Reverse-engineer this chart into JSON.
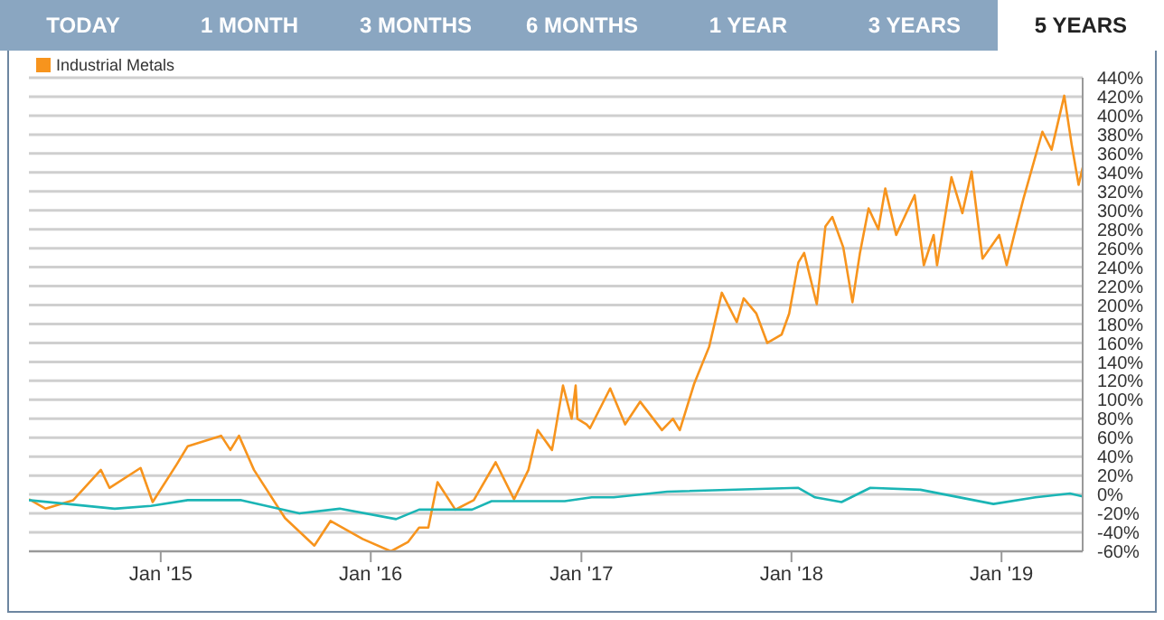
{
  "chart_data": {
    "type": "line",
    "annotations": [
      "TODAY",
      "1 MONTH",
      "3 MONTHS",
      "6 MONTHS",
      "1 YEAR",
      "3 YEARS",
      "5 YEARS"
    ],
    "xlim": [
      "2014-05-17",
      "2019-05-22"
    ],
    "xticks": [
      {
        "value": "2015-01-01",
        "label": "Jan '15"
      },
      {
        "value": "2016-01-01",
        "label": "Jan '16"
      },
      {
        "value": "2017-01-01",
        "label": "Jan '17"
      },
      {
        "value": "2018-01-01",
        "label": "Jan '18"
      },
      {
        "value": "2019-01-01",
        "label": "Jan '19"
      }
    ],
    "ylim": [
      -60,
      440
    ],
    "yticks": [
      {
        "value": -60,
        "label": "-60%"
      },
      {
        "value": -40,
        "label": "-40%"
      },
      {
        "value": -20,
        "label": "-20%"
      },
      {
        "value": 0,
        "label": "0%"
      },
      {
        "value": 20,
        "label": "20%"
      },
      {
        "value": 40,
        "label": "40%"
      },
      {
        "value": 60,
        "label": "60%"
      },
      {
        "value": 80,
        "label": "80%"
      },
      {
        "value": 100,
        "label": "100%"
      },
      {
        "value": 120,
        "label": "120%"
      },
      {
        "value": 140,
        "label": "140%"
      },
      {
        "value": 160,
        "label": "160%"
      },
      {
        "value": 180,
        "label": "180%"
      },
      {
        "value": 200,
        "label": "200%"
      },
      {
        "value": 220,
        "label": "220%"
      },
      {
        "value": 240,
        "label": "240%"
      },
      {
        "value": 260,
        "label": "260%"
      },
      {
        "value": 280,
        "label": "280%"
      },
      {
        "value": 300,
        "label": "300%"
      },
      {
        "value": 320,
        "label": "320%"
      },
      {
        "value": 340,
        "label": "340%"
      },
      {
        "value": 360,
        "label": "360%"
      },
      {
        "value": 380,
        "label": "380%"
      },
      {
        "value": 400,
        "label": "400%"
      },
      {
        "value": 420,
        "label": "420%"
      },
      {
        "value": 440,
        "label": "440%"
      }
    ],
    "grid": "y",
    "legend": "top left",
    "marker": "none",
    "line_style": "solid",
    "series": [
      {
        "name": "Industrial Metals",
        "color": "#f7941d",
        "x": [
          "2014-05-17",
          "2014-06-15",
          "2014-08-02",
          "2014-09-19",
          "2014-10-04",
          "2014-11-27",
          "2014-12-18",
          "2015-01-29",
          "2015-02-17",
          "2015-04-16",
          "2015-05-02",
          "2015-05-17",
          "2015-06-12",
          "2015-08-05",
          "2015-09-25",
          "2015-10-23",
          "2015-12-18",
          "2016-02-05",
          "2016-03-06",
          "2016-03-25",
          "2016-04-10",
          "2016-04-26",
          "2016-05-27",
          "2016-06-28",
          "2016-08-05",
          "2016-09-06",
          "2016-10-01",
          "2016-10-17",
          "2016-11-11",
          "2016-11-30",
          "2016-12-15",
          "2016-12-22",
          "2016-12-25",
          "2017-01-10",
          "2017-01-16",
          "2017-02-20",
          "2017-03-18",
          "2017-04-13",
          "2017-05-21",
          "2017-06-09",
          "2017-06-21",
          "2017-07-16",
          "2017-08-11",
          "2017-09-02",
          "2017-09-28",
          "2017-10-10",
          "2017-11-01",
          "2017-11-20",
          "2017-12-15",
          "2017-12-28",
          "2018-01-13",
          "2018-01-23",
          "2018-02-14",
          "2018-03-01",
          "2018-03-13",
          "2018-04-01",
          "2018-04-17",
          "2018-04-30",
          "2018-05-15",
          "2018-06-01",
          "2018-06-13",
          "2018-07-02",
          "2018-07-21",
          "2018-08-03",
          "2018-08-19",
          "2018-09-05",
          "2018-09-11",
          "2018-10-06",
          "2018-10-25",
          "2018-11-10",
          "2018-11-29",
          "2018-12-28",
          "2019-01-10",
          "2019-01-23",
          "2019-02-08",
          "2019-03-13",
          "2019-03-29",
          "2019-04-20",
          "2019-05-03",
          "2019-05-15",
          "2019-05-22"
        ],
        "values": [
          -5,
          -15,
          -6,
          26,
          7,
          28,
          -8,
          32,
          51,
          62,
          47,
          62,
          26,
          -25,
          -54,
          -28,
          -47,
          -60,
          -50,
          -35,
          -35,
          13,
          -16,
          -6,
          34,
          -5,
          26,
          68,
          47,
          115,
          80,
          115,
          80,
          74,
          70,
          112,
          74,
          98,
          68,
          80,
          68,
          117,
          156,
          213,
          182,
          207,
          191,
          160,
          169,
          191,
          245,
          255,
          201,
          283,
          293,
          261,
          203,
          255,
          302,
          280,
          323,
          274,
          299,
          316,
          242,
          274,
          242,
          335,
          297,
          341,
          249,
          274,
          242,
          274,
          312,
          383,
          364,
          421,
          369,
          327,
          345
        ]
      },
      {
        "color": "#1bb5b5",
        "x": [
          "2014-05-17",
          "2014-10-13",
          "2014-12-15",
          "2015-02-17",
          "2015-05-21",
          "2015-08-30",
          "2015-11-08",
          "2016-02-14",
          "2016-03-25",
          "2016-06-25",
          "2016-07-29",
          "2016-12-03",
          "2017-01-19",
          "2017-02-26",
          "2017-05-30",
          "2018-01-13",
          "2018-02-11",
          "2018-03-29",
          "2018-05-18",
          "2018-08-13",
          "2018-12-18",
          "2019-03-01",
          "2019-04-30",
          "2019-05-22"
        ],
        "values": [
          -6,
          -15,
          -12,
          -6,
          -6,
          -20,
          -15,
          -26,
          -16,
          -16,
          -7,
          -7,
          -3,
          -3,
          3,
          7,
          -3,
          -8,
          7,
          5,
          -10,
          -3,
          1,
          -2
        ]
      }
    ]
  }
}
